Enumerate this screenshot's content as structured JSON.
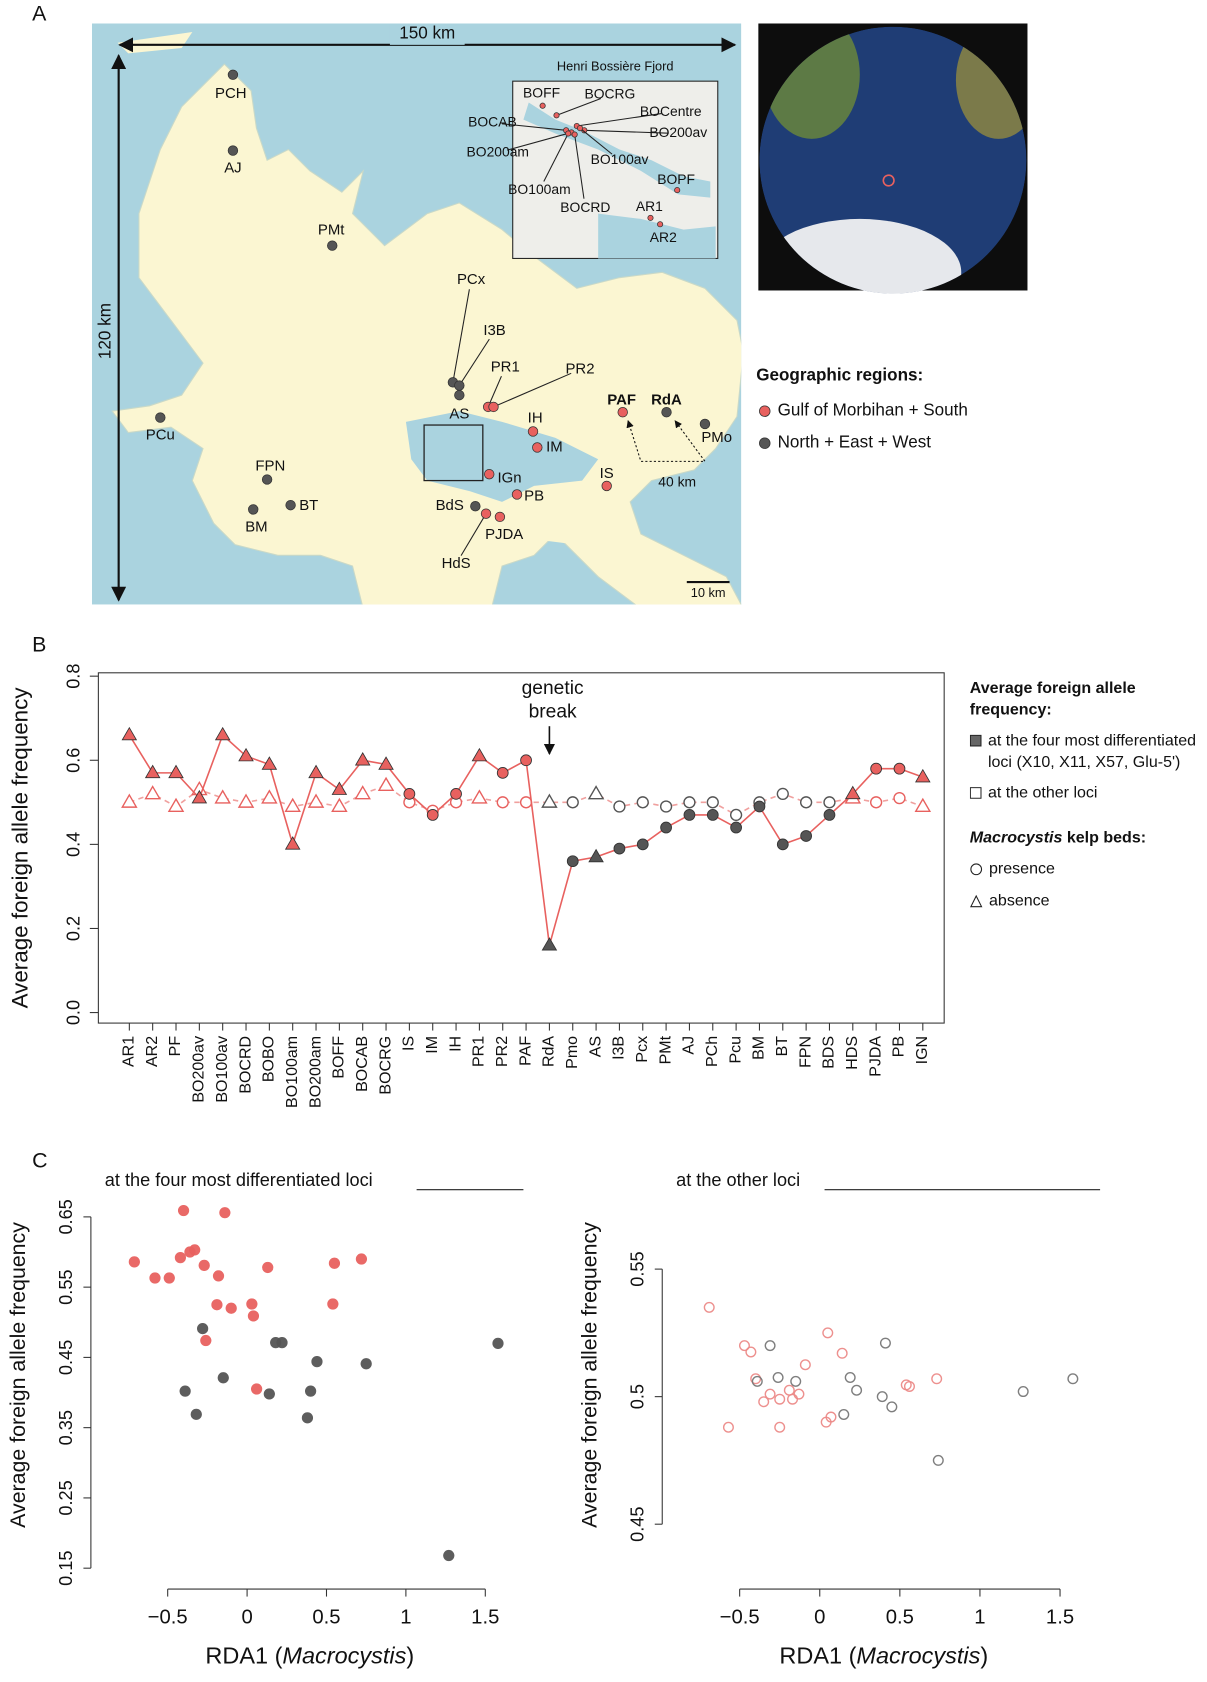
{
  "panel_labels": [
    "A",
    "B",
    "C"
  ],
  "map": {
    "scale_labels": [
      "150 km",
      "120 km",
      "40 km",
      "10 km"
    ],
    "inset_title": "Henri Bossière Fjord",
    "legend_title": "Geographic regions:",
    "regions": [
      {
        "name": "Gulf of Morbihan + South",
        "color": "#e8615f"
      },
      {
        "name": "North + East + West",
        "color": "#555555"
      }
    ],
    "sites": [
      {
        "label": "PCH",
        "region": 1
      },
      {
        "label": "AJ",
        "region": 1
      },
      {
        "label": "PMt",
        "region": 1
      },
      {
        "label": "PCx",
        "region": 1
      },
      {
        "label": "I3B",
        "region": 1
      },
      {
        "label": "AS",
        "region": 1
      },
      {
        "label": "PR1",
        "region": 0
      },
      {
        "label": "PR2",
        "region": 0
      },
      {
        "label": "IH",
        "region": 0
      },
      {
        "label": "IM",
        "region": 0
      },
      {
        "label": "IGn",
        "region": 0
      },
      {
        "label": "PB",
        "region": 0
      },
      {
        "label": "IS",
        "region": 0
      },
      {
        "label": "BdS",
        "region": 1
      },
      {
        "label": "PJDA",
        "region": 0
      },
      {
        "label": "HdS",
        "region": 0
      },
      {
        "label": "PCu",
        "region": 1
      },
      {
        "label": "FPN",
        "region": 1
      },
      {
        "label": "BM",
        "region": 1
      },
      {
        "label": "BT",
        "region": 1
      },
      {
        "label": "PAF",
        "region": 0
      },
      {
        "label": "RdA",
        "region": 1
      },
      {
        "label": "PMo",
        "region": 1
      }
    ],
    "inset_sites": [
      {
        "label": "BOFF",
        "region": 0
      },
      {
        "label": "BOCRG",
        "region": 0
      },
      {
        "label": "BOCAB",
        "region": 0
      },
      {
        "label": "BOCentre",
        "region": 0
      },
      {
        "label": "BO200av",
        "region": 0
      },
      {
        "label": "BO200am",
        "region": 0
      },
      {
        "label": "BO100av",
        "region": 0
      },
      {
        "label": "BO100am",
        "region": 0
      },
      {
        "label": "BOCRD",
        "region": 0
      },
      {
        "label": "BOPF",
        "region": 0
      },
      {
        "label": "AR1",
        "region": 0
      },
      {
        "label": "AR2",
        "region": 0
      }
    ]
  },
  "chart_data": [
    {
      "type": "line",
      "ylabel": "Average foreign allele frequency",
      "categories": [
        "AR1",
        "AR2",
        "PF",
        "BO200av",
        "BO100av",
        "BOCRD",
        "BOBO",
        "BO100am",
        "BO200am",
        "BOFF",
        "BOCAB",
        "BOCRG",
        "IS",
        "IM",
        "IH",
        "PR1",
        "PR2",
        "PAF",
        "RdA",
        "Pmo",
        "AS",
        "I3B",
        "Pcx",
        "PMt",
        "AJ",
        "PCh",
        "Pcu",
        "BM",
        "BT",
        "FPN",
        "BDS",
        "HDS",
        "PJDA",
        "PB",
        "IGN"
      ],
      "ylim": [
        -0.025,
        0.808
      ],
      "yticks": [
        {
          "value": 0,
          "label": "0.0"
        },
        0.2,
        0.4,
        0.6,
        0.8
      ],
      "markers": [
        "triangle",
        "triangle",
        "triangle",
        "triangle",
        "triangle",
        "triangle",
        "triangle",
        "triangle",
        "triangle",
        "triangle",
        "triangle",
        "triangle",
        "circle",
        "circle",
        "circle",
        "triangle",
        "circle",
        "circle",
        "triangle",
        "circle",
        "triangle",
        "circle",
        "circle",
        "circle",
        "circle",
        "circle",
        "circle",
        "circle",
        "circle",
        "circle",
        "circle",
        "triangle",
        "circle",
        "circle",
        "triangle"
      ],
      "point_colors": [
        "#e8615f",
        "#e8615f",
        "#e8615f",
        "#e8615f",
        "#e8615f",
        "#e8615f",
        "#e8615f",
        "#e8615f",
        "#e8615f",
        "#e8615f",
        "#e8615f",
        "#e8615f",
        "#e8615f",
        "#e8615f",
        "#e8615f",
        "#e8615f",
        "#e8615f",
        "#e8615f",
        "#555555",
        "#555555",
        "#555555",
        "#555555",
        "#555555",
        "#555555",
        "#555555",
        "#555555",
        "#555555",
        "#555555",
        "#555555",
        "#555555",
        "#555555",
        "#e8615f",
        "#e8615f",
        "#e8615f",
        "#e8615f"
      ],
      "series": [
        {
          "name": "at the four most differentiated loci (X10, X11, X57, Glu-5')",
          "color": "#e8615f",
          "filled": true,
          "dashed": false,
          "values": [
            0.66,
            0.57,
            0.57,
            0.51,
            0.66,
            0.61,
            0.59,
            0.4,
            0.57,
            0.53,
            0.6,
            0.59,
            0.52,
            0.47,
            0.52,
            0.61,
            0.57,
            0.6,
            0.16,
            0.36,
            0.37,
            0.39,
            0.4,
            0.44,
            0.47,
            0.47,
            0.44,
            0.49,
            0.4,
            0.42,
            0.47,
            0.52,
            0.58,
            0.58,
            0.56
          ]
        },
        {
          "name": "at the other loci",
          "color": "#f0a09e",
          "filled": false,
          "dashed": true,
          "values": [
            0.5,
            0.52,
            0.49,
            0.53,
            0.51,
            0.5,
            0.51,
            0.49,
            0.5,
            0.49,
            0.52,
            0.54,
            0.5,
            0.48,
            0.5,
            0.51,
            0.5,
            0.5,
            0.5,
            0.5,
            0.52,
            0.49,
            0.5,
            0.49,
            0.5,
            0.5,
            0.47,
            0.5,
            0.52,
            0.5,
            0.5,
            0.51,
            0.5,
            0.51,
            0.49
          ]
        }
      ],
      "legend_title": "Average foreign allele frequency:",
      "marker_legend": {
        "title": [
          "Macrocystis",
          " kelp beds:"
        ],
        "entries": [
          "presence",
          "absence"
        ]
      },
      "annotation": {
        "text": [
          "genetic",
          "break"
        ],
        "category": 18
      }
    },
    {
      "type": "scatter",
      "title": "at the four most differentiated loci",
      "xlabel": [
        "RDA1 (",
        "Macrocystis",
        ")"
      ],
      "ylabel": "Average foreign allele frequency",
      "xlim": [
        -0.95,
        1.74
      ],
      "ylim": [
        0.14,
        0.71
      ],
      "xticks": [
        {
          "value": -0.5,
          "label": "−0.5"
        },
        0,
        0.5,
        1,
        1.5
      ],
      "yticks": [
        0.15,
        0.25,
        0.35,
        0.45,
        0.55,
        0.65
      ],
      "filled": true,
      "series": [
        {
          "color": "#e8615f",
          "x": [
            -0.71,
            -0.58,
            -0.49,
            -0.42,
            -0.4,
            -0.36,
            -0.33,
            -0.27,
            -0.26,
            -0.18,
            -0.19,
            -0.1,
            -0.14,
            0.03,
            0.04,
            0.13,
            0.06,
            0.55,
            0.54,
            0.72
          ],
          "values": [
            0.586,
            0.563,
            0.563,
            0.592,
            0.659,
            0.6,
            0.603,
            0.581,
            0.474,
            0.566,
            0.525,
            0.52,
            0.656,
            0.526,
            0.509,
            0.578,
            0.405,
            0.584,
            0.526,
            0.59
          ]
        },
        {
          "color": "#555555",
          "x": [
            -0.28,
            -0.39,
            -0.32,
            -0.15,
            0.18,
            0.22,
            0.14,
            0.4,
            0.44,
            0.38,
            0.75,
            1.58,
            1.27
          ],
          "values": [
            0.491,
            0.402,
            0.369,
            0.421,
            0.471,
            0.471,
            0.398,
            0.402,
            0.444,
            0.364,
            0.441,
            0.47,
            0.168
          ]
        }
      ]
    },
    {
      "type": "scatter",
      "title": "at the other loci",
      "xlabel": [
        "RDA1 (",
        "Macrocystis",
        ")"
      ],
      "ylabel": "Average foreign allele frequency",
      "xlim": [
        -0.95,
        1.75
      ],
      "ylim": [
        0.43,
        0.587
      ],
      "xticks": [
        {
          "value": -0.5,
          "label": "−0.5"
        },
        0,
        0.5,
        1,
        1.5
      ],
      "yticks": [
        0.45,
        0.5,
        0.55
      ],
      "filled": false,
      "series": [
        {
          "color": "#ec8a88",
          "x": [
            -0.69,
            -0.47,
            -0.43,
            -0.4,
            -0.57,
            -0.35,
            -0.31,
            -0.25,
            -0.25,
            -0.19,
            -0.17,
            -0.13,
            -0.09,
            0.05,
            0.04,
            0.07,
            0.14,
            0.54,
            0.56,
            0.73
          ],
          "values": [
            0.535,
            0.52,
            0.5175,
            0.507,
            0.488,
            0.498,
            0.501,
            0.499,
            0.488,
            0.5025,
            0.499,
            0.501,
            0.5125,
            0.525,
            0.49,
            0.492,
            0.517,
            0.5046,
            0.504,
            0.507
          ]
        },
        {
          "color": "#777777",
          "x": [
            -0.31,
            -0.39,
            -0.15,
            -0.26,
            0.19,
            0.23,
            0.15,
            0.41,
            0.39,
            0.45,
            0.74,
            1.27,
            1.58
          ],
          "values": [
            0.52,
            0.506,
            0.506,
            0.5075,
            0.5075,
            0.5025,
            0.493,
            0.521,
            0.5,
            0.496,
            0.475,
            0.502,
            0.507
          ]
        }
      ]
    }
  ]
}
